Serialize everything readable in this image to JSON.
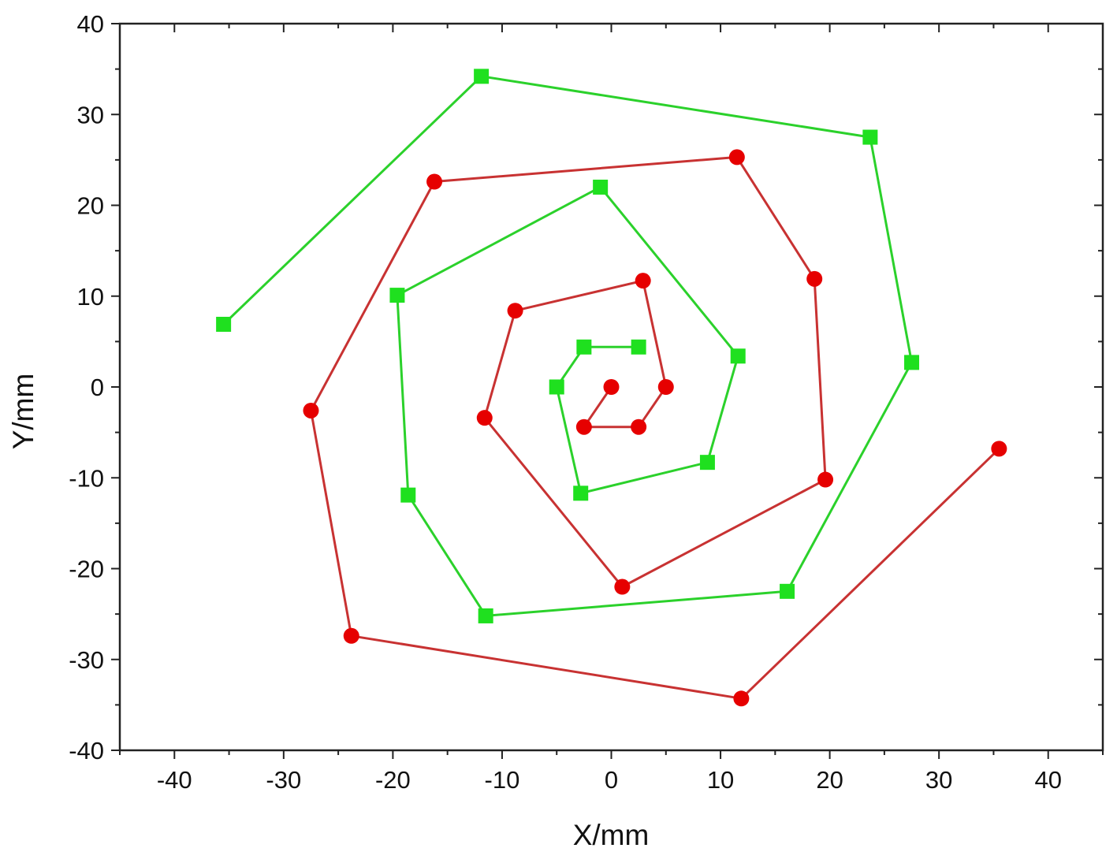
{
  "chart_data": {
    "type": "scatter",
    "xlabel": "X/mm",
    "ylabel": "Y/mm",
    "xlim": [
      -45,
      45
    ],
    "ylim": [
      -40,
      40
    ],
    "xticks": [
      -40,
      -30,
      -20,
      -10,
      0,
      10,
      20,
      30,
      40
    ],
    "yticks": [
      -40,
      -30,
      -20,
      -10,
      0,
      10,
      20,
      30,
      40
    ],
    "minor_ticks": true,
    "grid": false,
    "legend": "none",
    "series": [
      {
        "marker": "circle",
        "color": "#e60000",
        "line_color": "#c83232",
        "points": [
          [
            0,
            0
          ],
          [
            -2.5,
            -4.4
          ],
          [
            2.5,
            -4.4
          ],
          [
            5,
            0
          ],
          [
            2.9,
            11.7
          ],
          [
            -8.8,
            8.4
          ],
          [
            -11.6,
            -3.4
          ],
          [
            1,
            -22
          ],
          [
            19.6,
            -10.2
          ],
          [
            18.6,
            11.9
          ],
          [
            11.5,
            25.3
          ],
          [
            -16.2,
            22.6
          ],
          [
            -27.5,
            -2.6
          ],
          [
            -23.8,
            -27.4
          ],
          [
            11.9,
            -34.3
          ],
          [
            35.5,
            -6.8
          ]
        ]
      },
      {
        "marker": "square",
        "color": "#1fe01f",
        "line_color": "#2bd12b",
        "points": [
          [
            2.5,
            4.4
          ],
          [
            -2.5,
            4.4
          ],
          [
            -5,
            0
          ],
          [
            -2.8,
            -11.7
          ],
          [
            8.8,
            -8.3
          ],
          [
            11.6,
            3.4
          ],
          [
            -1,
            22
          ],
          [
            -19.6,
            10.1
          ],
          [
            -18.6,
            -11.9
          ],
          [
            -11.5,
            -25.2
          ],
          [
            16.1,
            -22.5
          ],
          [
            27.5,
            2.7
          ],
          [
            23.7,
            27.5
          ],
          [
            -11.9,
            34.2
          ],
          [
            -35.5,
            6.9
          ]
        ]
      }
    ]
  }
}
